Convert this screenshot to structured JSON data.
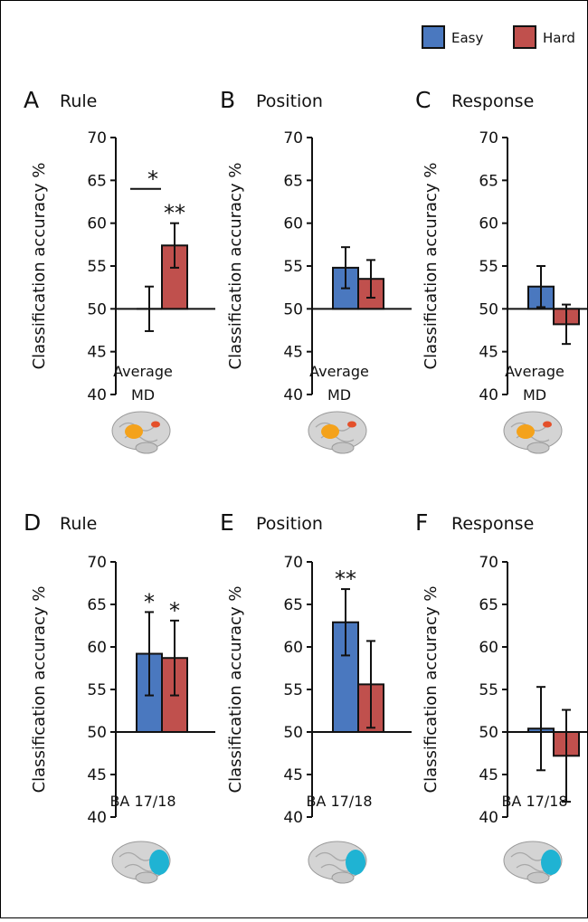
{
  "legend": {
    "items": [
      {
        "label": "Easy",
        "color": "#4a78bf"
      },
      {
        "label": "Hard",
        "color": "#c0504d"
      }
    ]
  },
  "chart_data": [
    {
      "type": "bar",
      "panel": "A",
      "title": "Rule",
      "categories": [
        "Average MD"
      ],
      "region": [
        "Average",
        "MD"
      ],
      "ylabel": "Classification accuracy %",
      "ylim": [
        40,
        70
      ],
      "baseline": 50,
      "yticks": [
        40,
        45,
        50,
        55,
        60,
        65,
        70
      ],
      "series": [
        {
          "name": "Easy",
          "values": [
            50.0
          ],
          "error": [
            2.6
          ]
        },
        {
          "name": "Hard",
          "values": [
            57.4
          ],
          "error": [
            2.6
          ]
        }
      ],
      "annotations": [
        {
          "text": "**",
          "target": "Hard"
        },
        {
          "text": "*",
          "target": "Easy-Hard comparison"
        }
      ],
      "brain_overlay": "md-regions"
    },
    {
      "type": "bar",
      "panel": "B",
      "title": "Position",
      "categories": [
        "Average MD"
      ],
      "region": [
        "Average",
        "MD"
      ],
      "ylabel": "Classification accuracy %",
      "ylim": [
        40,
        70
      ],
      "baseline": 50,
      "yticks": [
        40,
        45,
        50,
        55,
        60,
        65,
        70
      ],
      "series": [
        {
          "name": "Easy",
          "values": [
            54.8
          ],
          "error": [
            2.4
          ]
        },
        {
          "name": "Hard",
          "values": [
            53.5
          ],
          "error": [
            2.2
          ]
        }
      ],
      "annotations": [],
      "brain_overlay": "md-regions"
    },
    {
      "type": "bar",
      "panel": "C",
      "title": "Response",
      "categories": [
        "Average MD"
      ],
      "region": [
        "Average",
        "MD"
      ],
      "ylabel": "Classification accuracy %",
      "ylim": [
        40,
        70
      ],
      "baseline": 50,
      "yticks": [
        40,
        45,
        50,
        55,
        60,
        65,
        70
      ],
      "series": [
        {
          "name": "Easy",
          "values": [
            52.6
          ],
          "error": [
            2.4
          ]
        },
        {
          "name": "Hard",
          "values": [
            48.2
          ],
          "error": [
            2.3
          ]
        }
      ],
      "annotations": [],
      "brain_overlay": "md-regions"
    },
    {
      "type": "bar",
      "panel": "D",
      "title": "Rule",
      "categories": [
        "BA 17/18"
      ],
      "region": [
        "BA 17/18"
      ],
      "ylabel": "Classification accuracy %",
      "ylim": [
        40,
        70
      ],
      "baseline": 50,
      "yticks": [
        40,
        45,
        50,
        55,
        60,
        65,
        70
      ],
      "series": [
        {
          "name": "Easy",
          "values": [
            59.2
          ],
          "error": [
            4.9
          ]
        },
        {
          "name": "Hard",
          "values": [
            58.7
          ],
          "error": [
            4.4
          ]
        }
      ],
      "annotations": [
        {
          "text": "*",
          "target": "Easy"
        },
        {
          "text": "*",
          "target": "Hard"
        }
      ],
      "brain_overlay": "visual-cortex"
    },
    {
      "type": "bar",
      "panel": "E",
      "title": "Position",
      "categories": [
        "BA 17/18"
      ],
      "region": [
        "BA 17/18"
      ],
      "ylabel": "Classification accuracy %",
      "ylim": [
        40,
        70
      ],
      "baseline": 50,
      "yticks": [
        40,
        45,
        50,
        55,
        60,
        65,
        70
      ],
      "series": [
        {
          "name": "Easy",
          "values": [
            62.9
          ],
          "error": [
            3.9
          ]
        },
        {
          "name": "Hard",
          "values": [
            55.6
          ],
          "error": [
            5.1
          ]
        }
      ],
      "annotations": [
        {
          "text": "**",
          "target": "Easy"
        }
      ],
      "brain_overlay": "visual-cortex"
    },
    {
      "type": "bar",
      "panel": "F",
      "title": "Response",
      "categories": [
        "BA 17/18"
      ],
      "region": [
        "BA 17/18"
      ],
      "ylabel": "Classification accuracy %",
      "ylim": [
        40,
        70
      ],
      "baseline": 50,
      "yticks": [
        40,
        45,
        50,
        55,
        60,
        65,
        70
      ],
      "series": [
        {
          "name": "Easy",
          "values": [
            50.4
          ],
          "error": [
            4.9
          ]
        },
        {
          "name": "Hard",
          "values": [
            47.2
          ],
          "error": [
            5.4
          ]
        }
      ],
      "annotations": [],
      "brain_overlay": "visual-cortex"
    }
  ]
}
